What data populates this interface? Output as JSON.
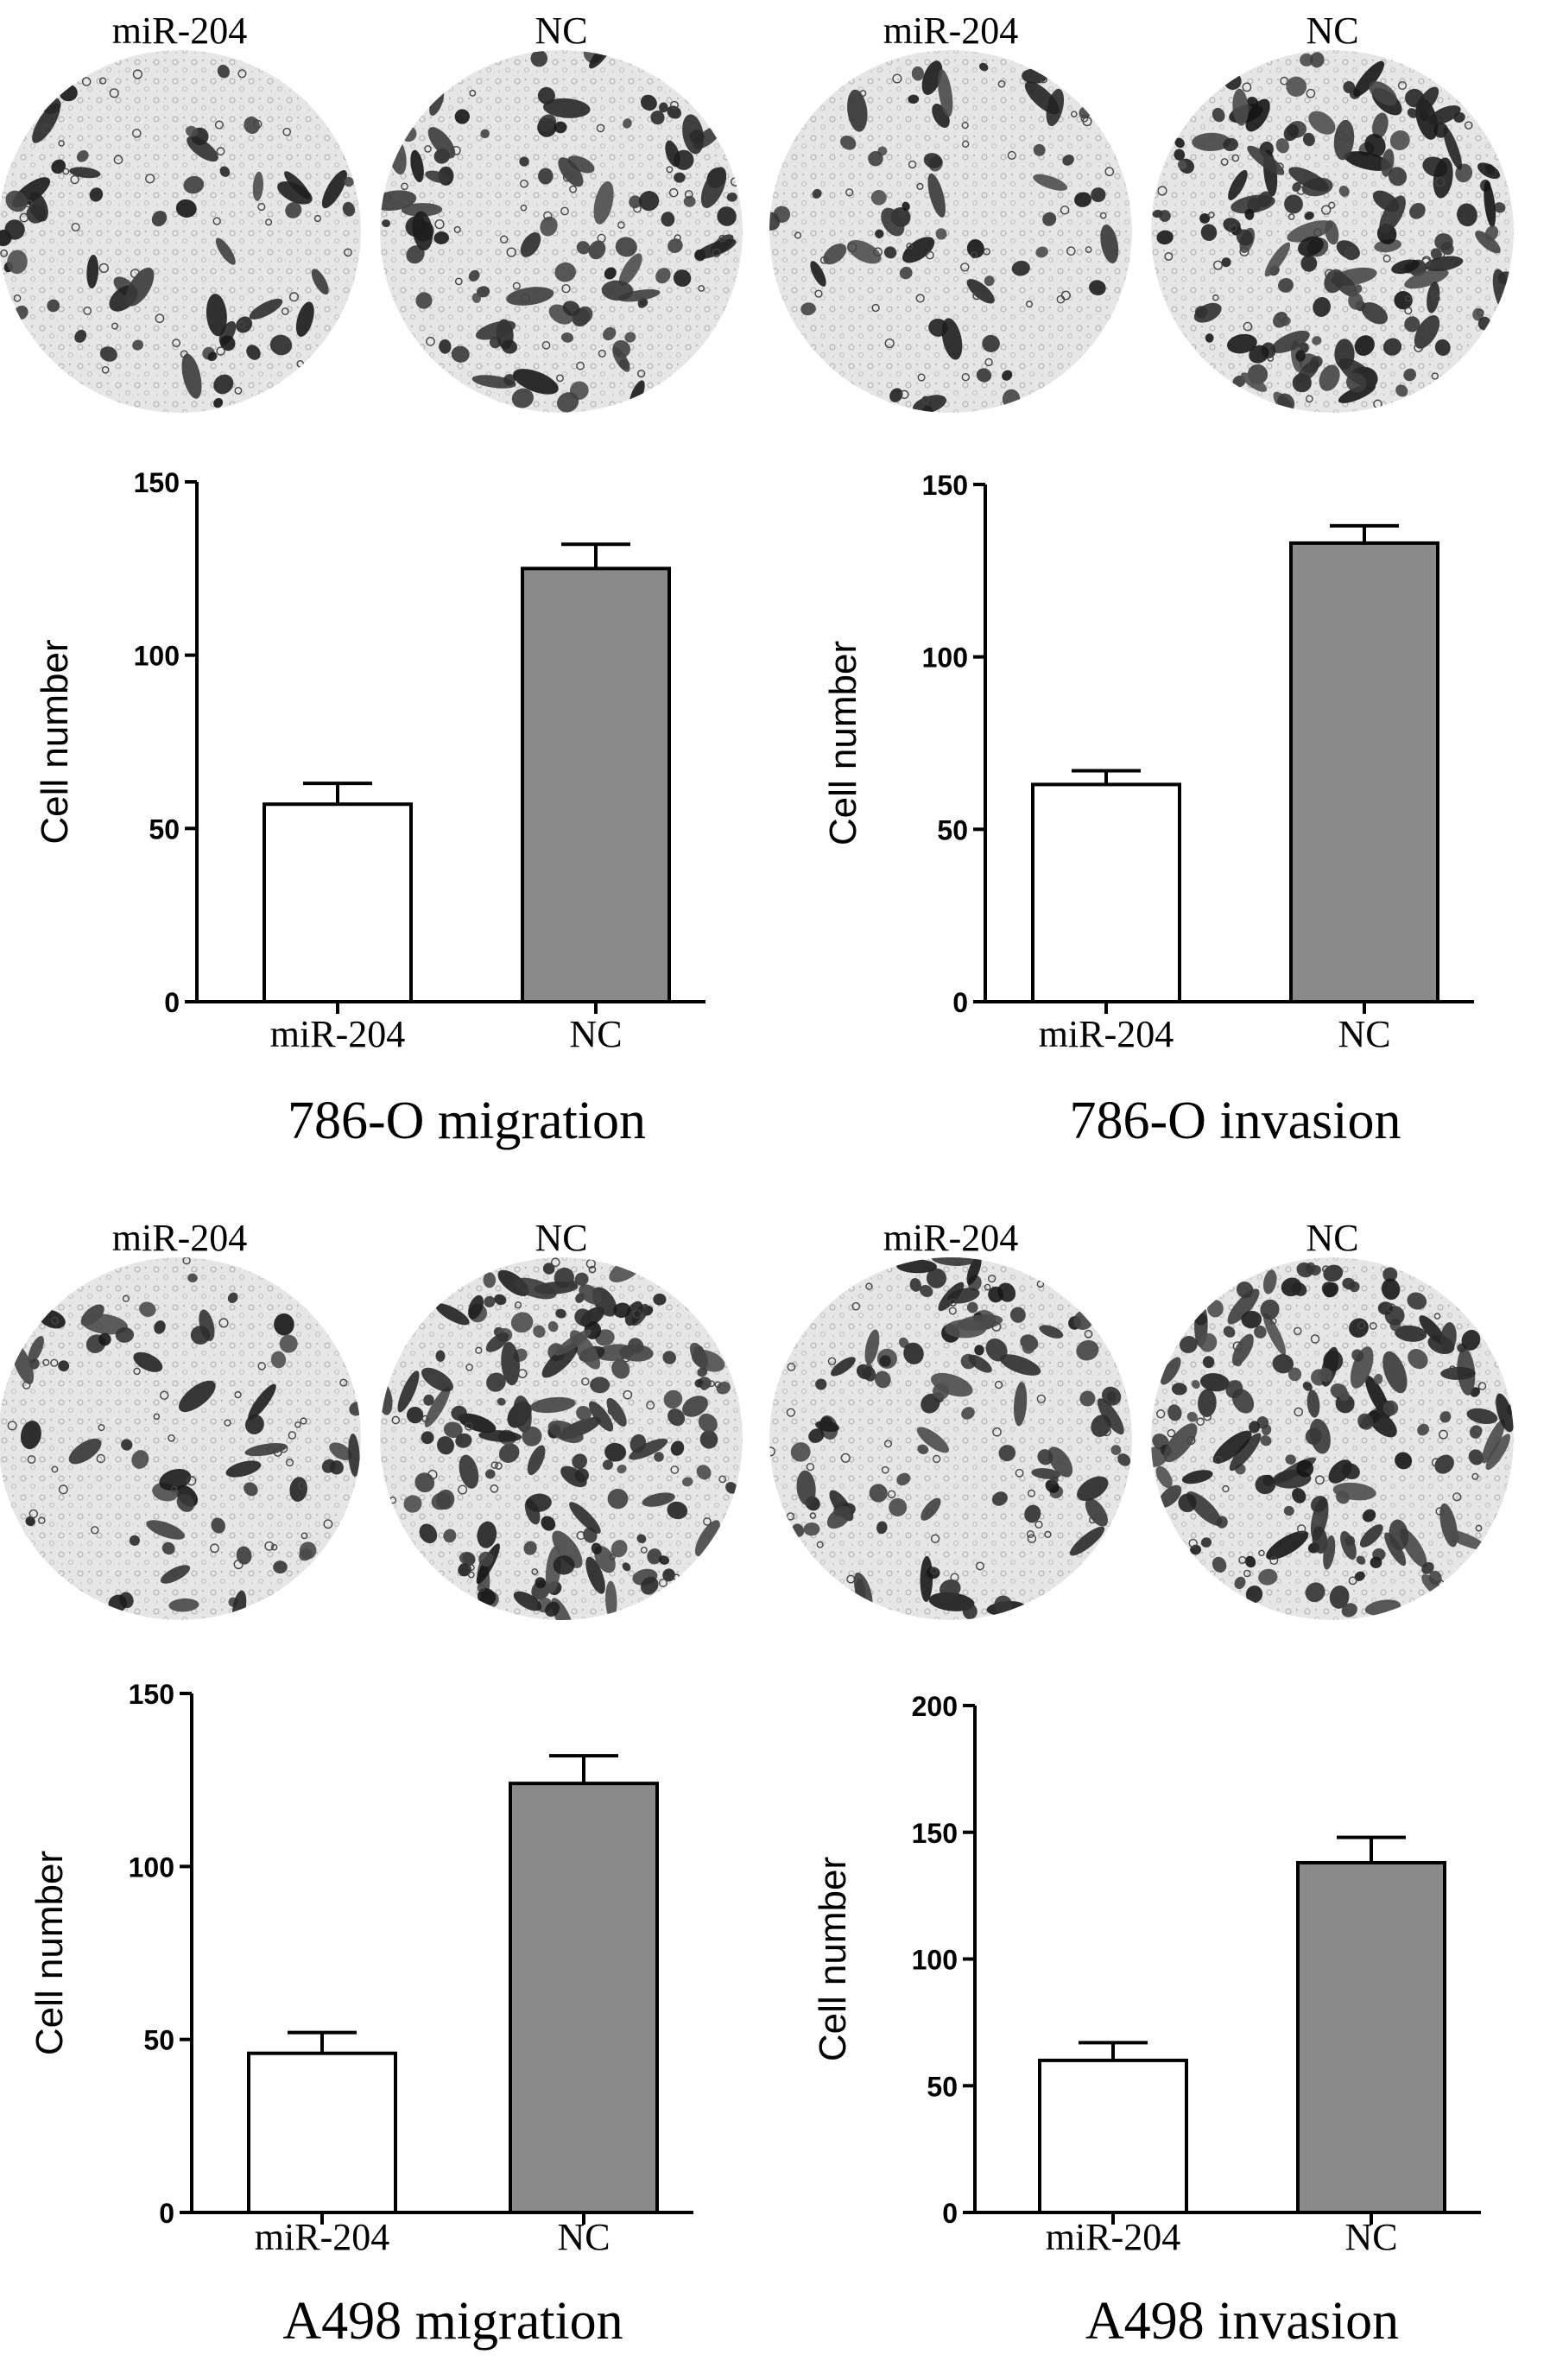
{
  "figure": {
    "panels": [
      {
        "id": "786o-migration",
        "title": "786-O migration",
        "images": [
          {
            "label": "miR-204",
            "density": "low"
          },
          {
            "label": "NC",
            "density": "medium"
          }
        ],
        "chart_index": 0
      },
      {
        "id": "786o-invasion",
        "title": "786-O invasion",
        "images": [
          {
            "label": "miR-204",
            "density": "low"
          },
          {
            "label": "NC",
            "density": "high"
          }
        ],
        "chart_index": 1
      },
      {
        "id": "a498-migration",
        "title": "A498 migration",
        "images": [
          {
            "label": "miR-204",
            "density": "low"
          },
          {
            "label": "NC",
            "density": "high"
          }
        ],
        "chart_index": 2
      },
      {
        "id": "a498-invasion",
        "title": "A498 invasion",
        "images": [
          {
            "label": "miR-204",
            "density": "medium"
          },
          {
            "label": "NC",
            "density": "high"
          }
        ],
        "chart_index": 3
      }
    ]
  },
  "colors": {
    "bar_mir204": "#ffffff",
    "bar_nc": "#8a8a8a",
    "axis": "#000000",
    "cell_stain": "#1f1f1f",
    "image_bg": "#e8e8e8"
  },
  "chart_data": [
    {
      "type": "bar",
      "categories": [
        "miR-204",
        "NC"
      ],
      "values": [
        57,
        125
      ],
      "errors": [
        6,
        7
      ],
      "ylabel": "Cell number",
      "ylim": [
        0,
        150
      ],
      "yticks": [
        0,
        50,
        100,
        150
      ],
      "grid": false
    },
    {
      "type": "bar",
      "categories": [
        "miR-204",
        "NC"
      ],
      "values": [
        63,
        133
      ],
      "errors": [
        4,
        5
      ],
      "ylabel": "Cell number",
      "ylim": [
        0,
        150
      ],
      "yticks": [
        0,
        50,
        100,
        150
      ],
      "grid": false
    },
    {
      "type": "bar",
      "categories": [
        "miR-204",
        "NC"
      ],
      "values": [
        46,
        124
      ],
      "errors": [
        6,
        8
      ],
      "ylabel": "Cell number",
      "ylim": [
        0,
        150
      ],
      "yticks": [
        0,
        50,
        100,
        150
      ],
      "grid": false
    },
    {
      "type": "bar",
      "categories": [
        "miR-204",
        "NC"
      ],
      "values": [
        60,
        138
      ],
      "errors": [
        7,
        10
      ],
      "ylabel": "Cell number",
      "ylim": [
        0,
        200
      ],
      "yticks": [
        0,
        50,
        100,
        150,
        200
      ],
      "grid": false
    }
  ]
}
